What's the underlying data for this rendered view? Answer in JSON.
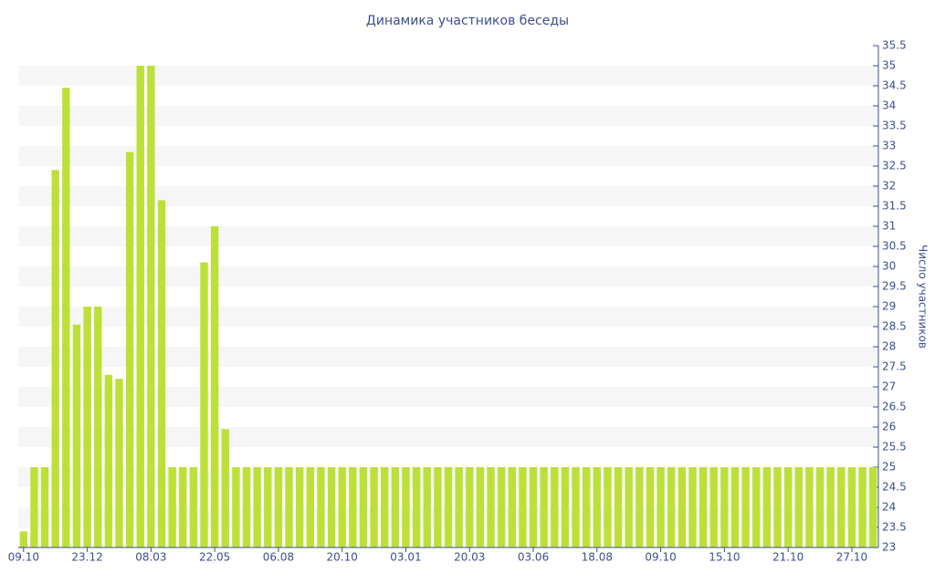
{
  "chart_data": {
    "type": "bar",
    "title": "Динамика участников беседы",
    "y_label": "Число участников",
    "categories": [
      "09.10",
      null,
      null,
      null,
      null,
      null,
      "23.12",
      null,
      null,
      null,
      null,
      null,
      "08.03",
      null,
      null,
      null,
      null,
      null,
      "22.05",
      null,
      null,
      null,
      null,
      null,
      "06.08",
      null,
      null,
      null,
      null,
      null,
      "20.10",
      null,
      null,
      null,
      null,
      null,
      "03.01",
      null,
      null,
      null,
      null,
      null,
      "20.03",
      null,
      null,
      null,
      null,
      null,
      "03.06",
      null,
      null,
      null,
      null,
      null,
      "18.08",
      null,
      null,
      null,
      null,
      null,
      "09.10",
      null,
      null,
      null,
      null,
      null,
      "15.10",
      null,
      null,
      null,
      null,
      null,
      "21.10",
      null,
      null,
      null,
      null,
      null,
      "27.10",
      null,
      null
    ],
    "values": [
      23.4,
      25,
      25,
      32.4,
      34.45,
      28.55,
      29,
      29,
      27.3,
      27.2,
      32.85,
      35,
      35,
      31.65,
      25,
      25,
      25,
      30.1,
      31,
      25.95,
      25,
      25,
      25,
      25,
      25,
      25,
      25,
      25,
      25,
      25,
      25,
      25,
      25,
      25,
      25,
      25,
      25,
      25,
      25,
      25,
      25,
      25,
      25,
      25,
      25,
      25,
      25,
      25,
      25,
      25,
      25,
      25,
      25,
      25,
      25,
      25,
      25,
      25,
      25,
      25,
      25,
      25,
      25,
      25,
      25,
      25,
      25,
      25,
      25,
      25,
      25,
      25,
      25,
      25,
      25,
      25,
      25,
      25,
      25,
      25,
      25
    ],
    "color": "#bde038",
    "ylim": [
      23,
      35.5
    ],
    "yticks": [
      23,
      23.5,
      24,
      24.5,
      25,
      25.5,
      26,
      26.5,
      27,
      27.5,
      28,
      28.5,
      29,
      29.5,
      30,
      30.5,
      31,
      31.5,
      32,
      32.5,
      33,
      33.5,
      34,
      34.5,
      35,
      35.5
    ],
    "grid": true,
    "y_axis_side": "right"
  }
}
